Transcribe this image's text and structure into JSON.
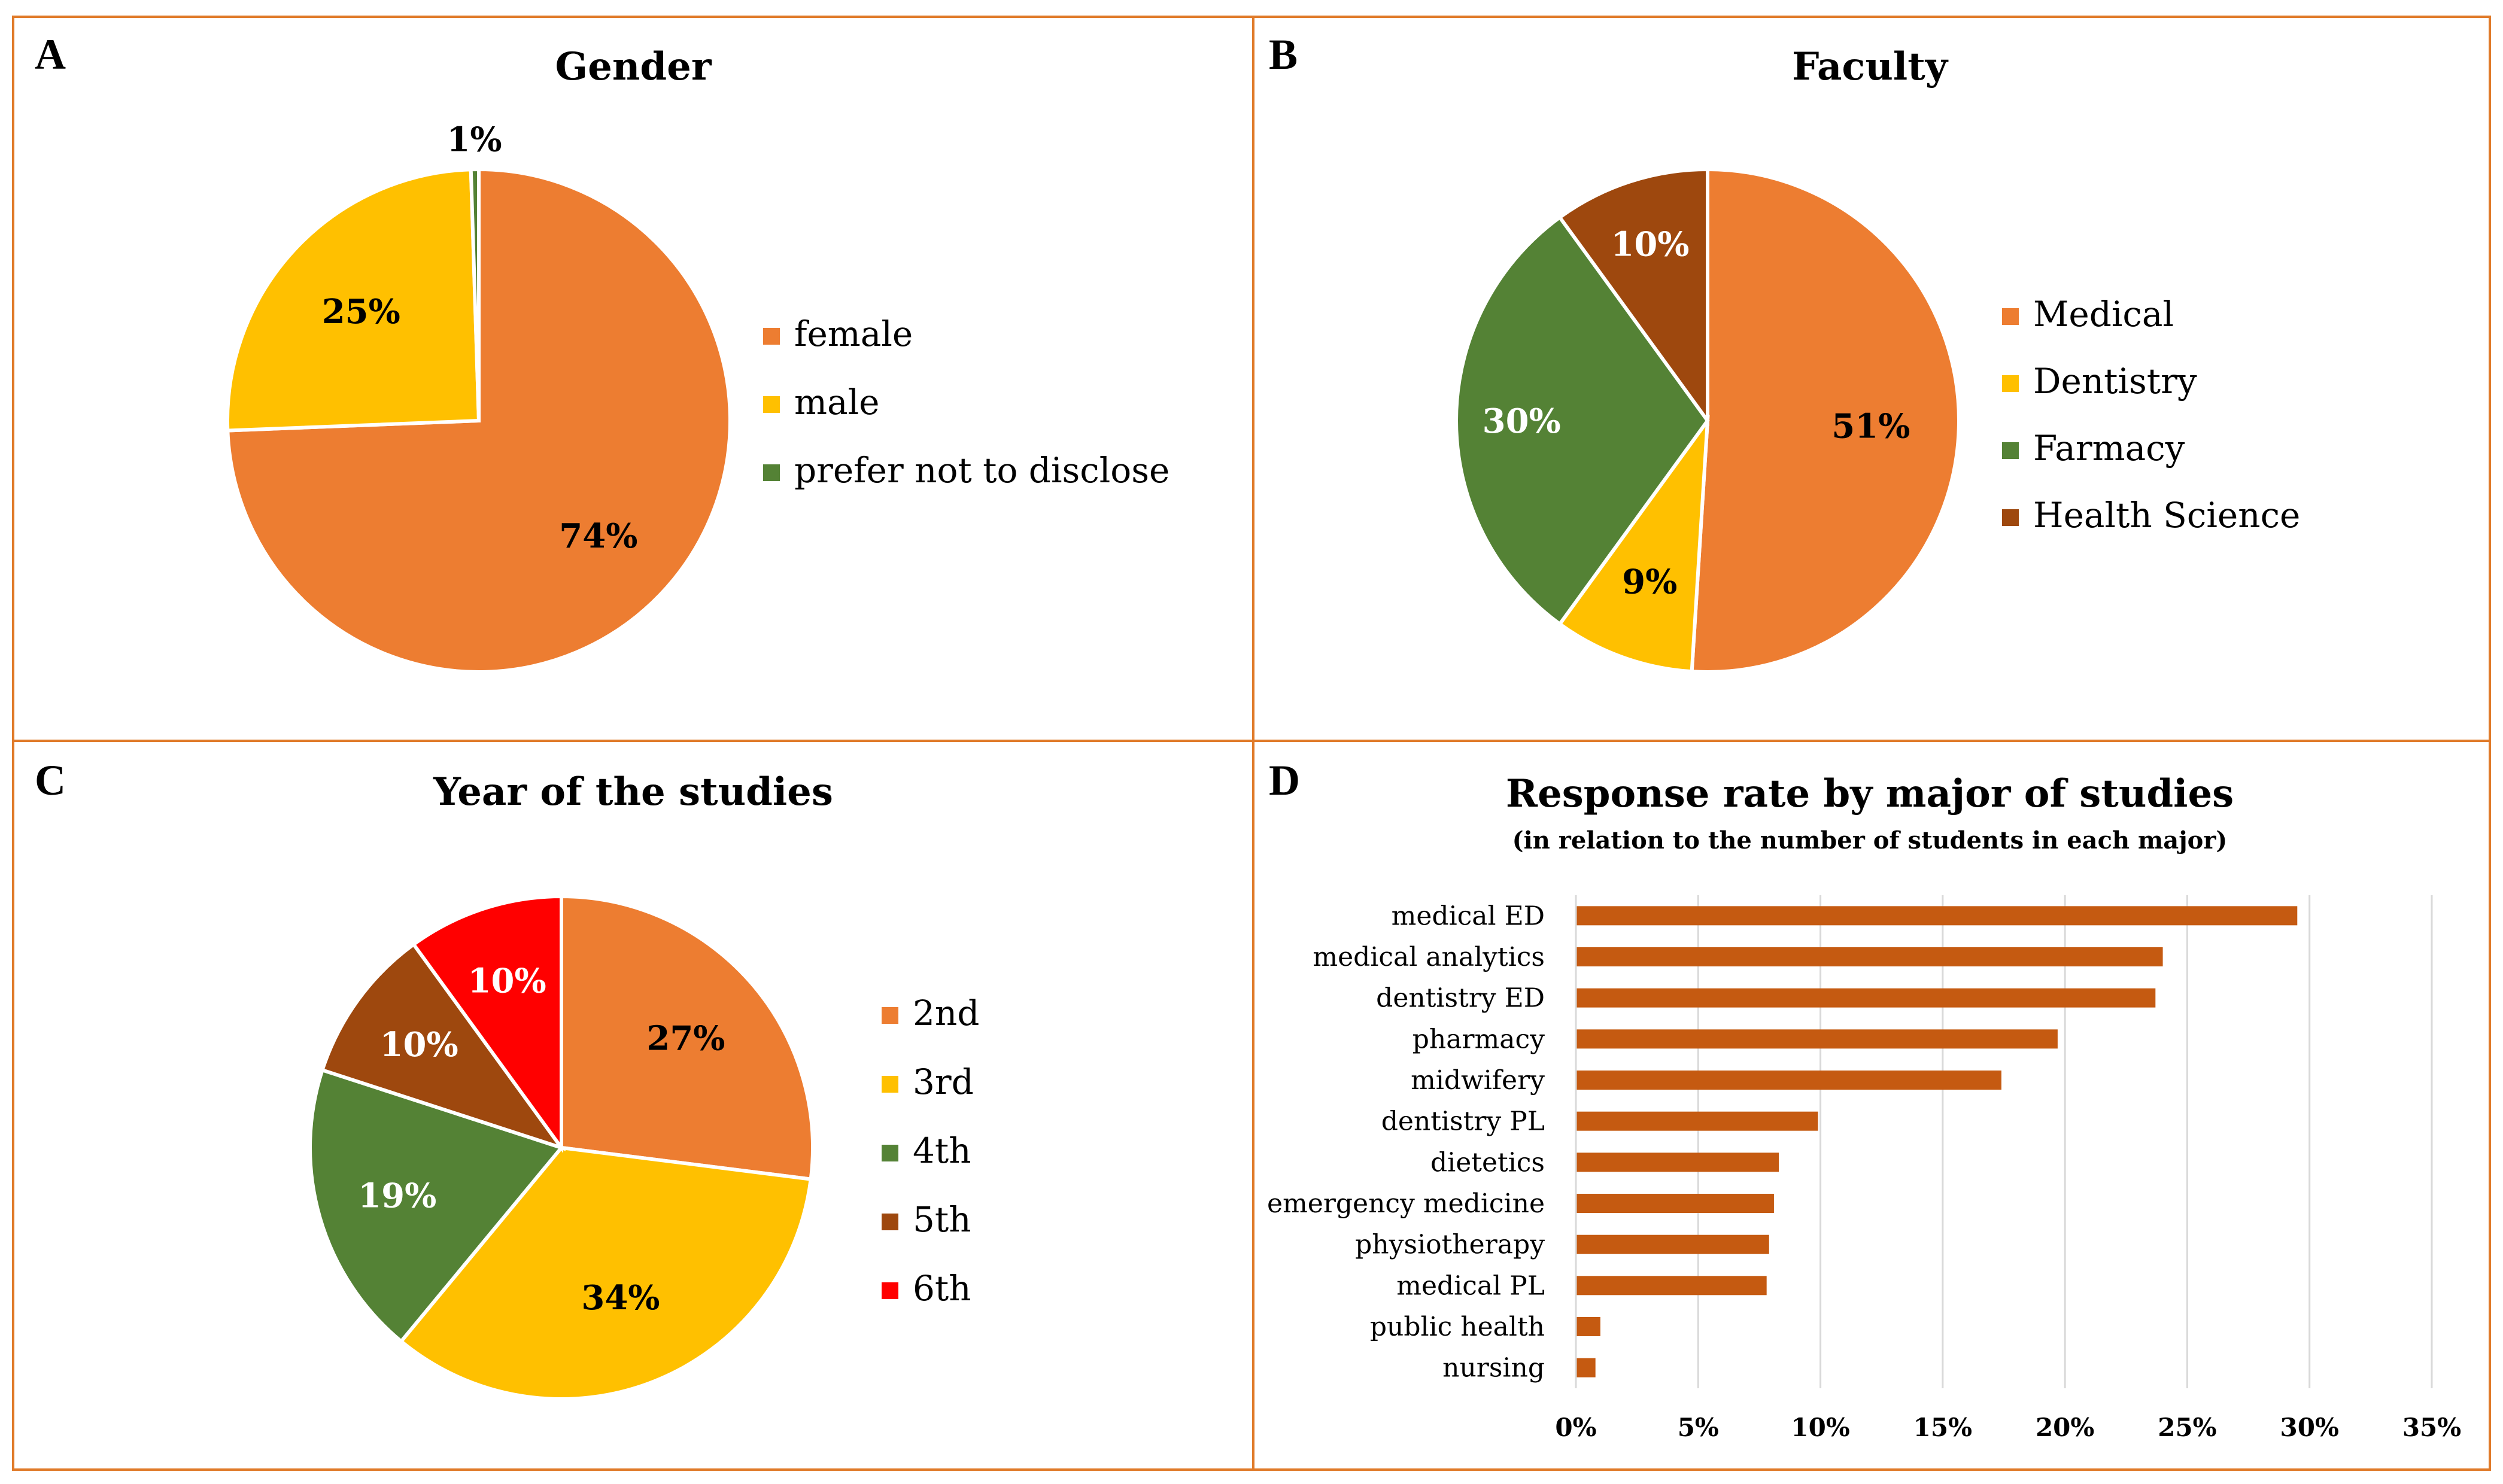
{
  "colors": {
    "frame": "#E07B2A",
    "orange": "#ED7D31",
    "yellow": "#FFC000",
    "green": "#548235",
    "brown": "#9E480E",
    "red": "#FF0000",
    "bar": "#C55A11",
    "grid": "#D9D9D9"
  },
  "panels": {
    "a": {
      "letter": "A"
    },
    "b": {
      "letter": "B"
    },
    "c": {
      "letter": "C"
    },
    "d": {
      "letter": "D"
    }
  },
  "chart_data": [
    {
      "type": "pie",
      "title": "Gender",
      "start_angle_deg": 0,
      "slices": [
        {
          "label": "female",
          "value": 74,
          "display": "74%",
          "color": "#ED7D31",
          "label_color": "#000000"
        },
        {
          "label": "male",
          "value": 25,
          "display": "25%",
          "color": "#FFC000",
          "label_color": "#000000"
        },
        {
          "label": "prefer not to disclose",
          "value": 0.5,
          "display": "1%",
          "color": "#548235",
          "label_color": "#000000"
        }
      ]
    },
    {
      "type": "pie",
      "title": "Faculty",
      "start_angle_deg": 0,
      "slices": [
        {
          "label": "Medical",
          "value": 51,
          "display": "51%",
          "color": "#ED7D31",
          "label_color": "#000000"
        },
        {
          "label": "Dentistry",
          "value": 9,
          "display": "9%",
          "color": "#FFC000",
          "label_color": "#000000"
        },
        {
          "label": "Farmacy",
          "value": 30,
          "display": "30%",
          "color": "#548235",
          "label_color": "#FFFFFF"
        },
        {
          "label": "Health Science",
          "value": 10,
          "display": "10%",
          "color": "#9E480E",
          "label_color": "#FFFFFF"
        }
      ]
    },
    {
      "type": "pie",
      "title": "Year of the studies",
      "start_angle_deg": 0,
      "slices": [
        {
          "label": "2nd",
          "value": 27,
          "display": "27%",
          "color": "#ED7D31",
          "label_color": "#000000"
        },
        {
          "label": "3rd",
          "value": 34,
          "display": "34%",
          "color": "#FFC000",
          "label_color": "#000000"
        },
        {
          "label": "4th",
          "value": 19,
          "display": "19%",
          "color": "#548235",
          "label_color": "#FFFFFF"
        },
        {
          "label": "5th",
          "value": 10,
          "display": "10%",
          "color": "#9E480E",
          "label_color": "#FFFFFF"
        },
        {
          "label": "6th",
          "value": 10,
          "display": "10%",
          "color": "#FF0000",
          "label_color": "#FFFFFF"
        }
      ]
    },
    {
      "type": "bar",
      "orientation": "horizontal",
      "title": "Response rate by major of studies",
      "subtitle": "(in relation to the number of students in each major)",
      "categories": [
        "medical ED",
        "medical analytics",
        "dentistry ED",
        "pharmacy",
        "midwifery",
        "dentistry PL",
        "dietetics",
        "emergency medicine",
        "physiotherapy",
        "medical PL",
        "public health",
        "nursing"
      ],
      "values": [
        29.5,
        24,
        23.7,
        19.7,
        17.4,
        9.9,
        8.3,
        8.1,
        7.9,
        7.8,
        1,
        0.8
      ],
      "xlim": [
        0,
        35
      ],
      "xticks": [
        0,
        5,
        10,
        15,
        20,
        25,
        30,
        35
      ],
      "xtick_labels": [
        "0%",
        "5%",
        "10%",
        "15%",
        "20%",
        "25%",
        "30%",
        "35%"
      ],
      "grid": true
    }
  ]
}
